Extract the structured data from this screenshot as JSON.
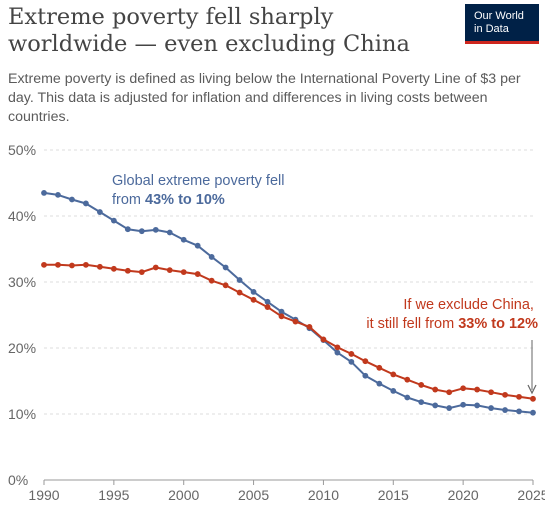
{
  "header": {
    "title": "Extreme poverty fell sharply worldwide — even excluding China",
    "subtitle": "Extreme poverty is defined as living below the International Poverty Line of $3 per day. This data is adjusted for inflation and differences in living costs between countries.",
    "logo_line1": "Our World",
    "logo_line2": "in Data"
  },
  "colors": {
    "global": "#4c6a9c",
    "excluding_china": "#c1391d",
    "logo_bg": "#002147",
    "logo_accent": "#ce261e"
  },
  "chart_data": {
    "type": "line",
    "xlim": [
      1990,
      2025
    ],
    "ylim": [
      0,
      50
    ],
    "x_ticks": [
      "1990",
      "1995",
      "2000",
      "2005",
      "2010",
      "2015",
      "2020",
      "2025"
    ],
    "y_ticks": [
      "0%",
      "10%",
      "20%",
      "30%",
      "40%",
      "50%"
    ],
    "grid": "horizontal dashed",
    "series": [
      {
        "key": "global",
        "color": "#4c6a9c",
        "x": [
          1990,
          1991,
          1992,
          1993,
          1994,
          1995,
          1996,
          1997,
          1998,
          1999,
          2000,
          2001,
          2002,
          2003,
          2004,
          2005,
          2006,
          2007,
          2008,
          2009,
          2010,
          2011,
          2012,
          2013,
          2014,
          2015,
          2016,
          2017,
          2018,
          2019,
          2020,
          2021,
          2022,
          2023,
          2024,
          2025
        ],
        "values": [
          43.5,
          43.2,
          42.5,
          41.9,
          40.6,
          39.3,
          38.0,
          37.7,
          37.9,
          37.5,
          36.4,
          35.5,
          33.8,
          32.2,
          30.3,
          28.5,
          27.0,
          25.5,
          24.3,
          23.0,
          21.2,
          19.3,
          17.9,
          15.8,
          14.6,
          13.5,
          12.5,
          11.8,
          11.3,
          10.9,
          11.4,
          11.3,
          10.9,
          10.6,
          10.4,
          10.2
        ]
      },
      {
        "key": "excluding_china",
        "color": "#c1391d",
        "x": [
          1990,
          1991,
          1992,
          1993,
          1994,
          1995,
          1996,
          1997,
          1998,
          1999,
          2000,
          2001,
          2002,
          2003,
          2004,
          2005,
          2006,
          2007,
          2008,
          2009,
          2010,
          2011,
          2012,
          2013,
          2014,
          2015,
          2016,
          2017,
          2018,
          2019,
          2020,
          2021,
          2022,
          2023,
          2024,
          2025
        ],
        "values": [
          32.6,
          32.6,
          32.5,
          32.6,
          32.3,
          32.0,
          31.7,
          31.5,
          32.2,
          31.8,
          31.5,
          31.2,
          30.2,
          29.5,
          28.4,
          27.3,
          26.2,
          24.8,
          24.0,
          23.2,
          21.3,
          20.1,
          19.1,
          18.0,
          17.0,
          16.0,
          15.2,
          14.4,
          13.7,
          13.3,
          13.9,
          13.7,
          13.3,
          12.9,
          12.6,
          12.3
        ]
      }
    ],
    "annotations": [
      {
        "key": "global",
        "line1": "Global extreme poverty fell",
        "line2_prefix": "from ",
        "line2_bold": "43% to 10%"
      },
      {
        "key": "excluding_china",
        "line1": "If we exclude China,",
        "line2_prefix": "it still fell from ",
        "line2_bold": "33% to 12%"
      }
    ]
  }
}
